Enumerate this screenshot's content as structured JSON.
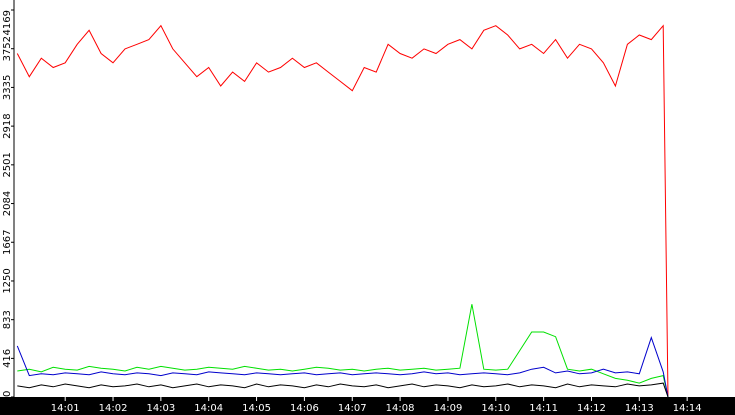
{
  "chart_data": {
    "type": "line",
    "x": [
      0,
      0.25,
      0.5,
      0.75,
      1,
      1.25,
      1.5,
      1.75,
      2,
      2.25,
      2.5,
      2.75,
      3,
      3.25,
      3.5,
      3.75,
      4,
      4.25,
      4.5,
      4.75,
      5,
      5.25,
      5.5,
      5.75,
      6,
      6.25,
      6.5,
      6.75,
      7,
      7.25,
      7.5,
      7.75,
      8,
      8.25,
      8.5,
      8.75,
      9,
      9.25,
      9.5,
      9.75,
      10,
      10.25,
      10.5,
      10.75,
      11,
      11.25,
      11.5,
      11.75,
      12,
      12.25,
      12.5,
      12.75,
      13,
      13.25,
      13.5,
      13.6
    ],
    "series": [
      {
        "color": "#ff0000",
        "values": [
          3700,
          3450,
          3650,
          3550,
          3600,
          3800,
          3950,
          3700,
          3600,
          3750,
          3800,
          3850,
          4000,
          3750,
          3600,
          3450,
          3550,
          3350,
          3500,
          3400,
          3600,
          3500,
          3550,
          3650,
          3550,
          3600,
          3500,
          3400,
          3300,
          3550,
          3500,
          3800,
          3700,
          3650,
          3750,
          3700,
          3800,
          3850,
          3750,
          3950,
          4000,
          3900,
          3750,
          3800,
          3700,
          3850,
          3650,
          3800,
          3750,
          3600,
          3350,
          3800,
          3900,
          3850,
          4000,
          0
        ]
      },
      {
        "color": "#00e000",
        "values": [
          280,
          300,
          270,
          320,
          300,
          290,
          330,
          310,
          300,
          280,
          320,
          300,
          330,
          310,
          290,
          300,
          320,
          310,
          300,
          330,
          310,
          290,
          300,
          280,
          300,
          320,
          310,
          290,
          300,
          280,
          300,
          310,
          290,
          300,
          310,
          290,
          300,
          310,
          1000,
          300,
          290,
          300,
          500,
          700,
          700,
          650,
          300,
          280,
          300,
          250,
          200,
          180,
          150,
          200,
          230,
          0
        ]
      },
      {
        "color": "#0000cc",
        "values": [
          550,
          230,
          250,
          240,
          260,
          250,
          240,
          270,
          250,
          240,
          260,
          250,
          230,
          260,
          250,
          240,
          270,
          260,
          250,
          240,
          260,
          250,
          240,
          250,
          260,
          240,
          250,
          260,
          240,
          250,
          260,
          250,
          240,
          250,
          270,
          250,
          260,
          240,
          250,
          260,
          250,
          240,
          260,
          300,
          320,
          260,
          280,
          250,
          260,
          300,
          260,
          270,
          250,
          640,
          270,
          0
        ]
      },
      {
        "color": "#000000",
        "values": [
          120,
          100,
          130,
          110,
          140,
          120,
          100,
          130,
          110,
          120,
          140,
          110,
          130,
          100,
          120,
          140,
          110,
          130,
          120,
          100,
          140,
          110,
          130,
          120,
          100,
          130,
          110,
          140,
          120,
          110,
          130,
          100,
          120,
          140,
          110,
          130,
          120,
          100,
          130,
          110,
          120,
          140,
          110,
          130,
          120,
          100,
          140,
          110,
          130,
          120,
          110,
          140,
          120,
          130,
          150,
          0
        ]
      }
    ],
    "xlim": [
      -0.07,
      15.0
    ],
    "ylim": [
      0,
      4169
    ],
    "yticks": [
      0,
      416,
      833,
      1250,
      1667,
      2084,
      2501,
      2918,
      3335,
      3752,
      4169
    ],
    "xticks": [
      {
        "value": 1,
        "label": "14:01"
      },
      {
        "value": 2,
        "label": "14:02"
      },
      {
        "value": 3,
        "label": "14:03"
      },
      {
        "value": 4,
        "label": "14:04"
      },
      {
        "value": 5,
        "label": "14:05"
      },
      {
        "value": 6,
        "label": "14:06"
      },
      {
        "value": 7,
        "label": "14:07"
      },
      {
        "value": 8,
        "label": "14:08"
      },
      {
        "value": 9,
        "label": "14:09"
      },
      {
        "value": 10,
        "label": "14:10"
      },
      {
        "value": 11,
        "label": "14:11"
      },
      {
        "value": 12,
        "label": "14:12"
      },
      {
        "value": 13,
        "label": "14:13"
      },
      {
        "value": 14,
        "label": "14:14"
      }
    ]
  }
}
